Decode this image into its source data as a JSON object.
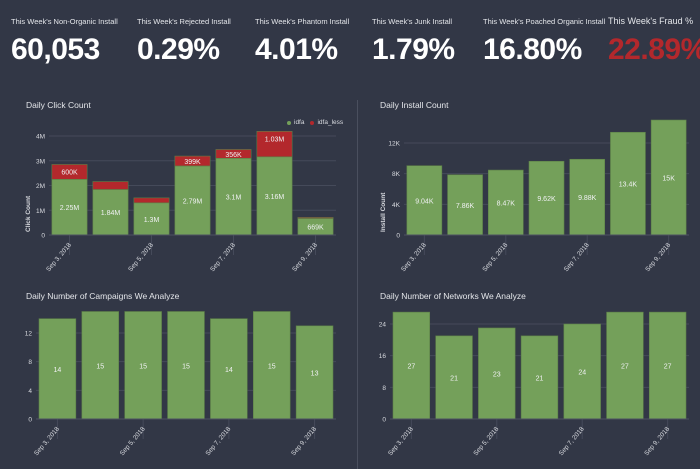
{
  "kpis": [
    {
      "label": "This Week's Non-Organic Install",
      "value": "60,053"
    },
    {
      "label": "This Week's Rejected Install",
      "value": "0.29%"
    },
    {
      "label": "This Week's Phantom Install",
      "value": "4.01%"
    },
    {
      "label": "This Week's Junk Install",
      "value": "1.79%"
    },
    {
      "label": "This Week's Poached Organic Install",
      "value": "16.80%"
    },
    {
      "label": "This Week's Fraud %",
      "value": "22.89%"
    }
  ],
  "colors": {
    "background": "#323746",
    "bar_green": "#74a05a",
    "bar_red": "#b3282c",
    "fraud_value": "#b3282c",
    "grid": "#454a5a"
  },
  "chart_data": [
    {
      "id": "click",
      "type": "bar",
      "stacked": true,
      "title": "Daily Click Count",
      "xlabel": "",
      "ylabel": "Click Count",
      "categories": [
        "Sep 3, 2018",
        "Sep 4, 2018",
        "Sep 5, 2018",
        "Sep 6, 2018",
        "Sep 7, 2018",
        "Sep 8, 2018",
        "Sep 9, 2018"
      ],
      "x_tick_labels": [
        "Sep 3, 2018",
        "Sep 5, 2018",
        "Sep 7, 2018",
        "Sep 9, 2018"
      ],
      "x_tick_indices": [
        0,
        2,
        4,
        6
      ],
      "y_ticks": [
        0,
        1000000,
        2000000,
        3000000,
        4000000
      ],
      "y_tick_labels": [
        "0",
        "1M",
        "2M",
        "3M",
        "4M"
      ],
      "ylim": [
        0,
        4200000
      ],
      "grid": true,
      "legend": {
        "placement": "top-right",
        "entries": [
          {
            "name": "idfa",
            "color": "#74a05a"
          },
          {
            "name": "idfa_less",
            "color": "#b3282c"
          }
        ]
      },
      "series": [
        {
          "name": "idfa",
          "color": "#74a05a",
          "values": [
            2250000,
            1840000,
            1300000,
            2790000,
            3100000,
            3160000,
            669000
          ],
          "labels": [
            "2.25M",
            "1.84M",
            "1.3M",
            "2.79M",
            "3.1M",
            "3.16M",
            "669K"
          ]
        },
        {
          "name": "idfa_less",
          "color": "#b3282c",
          "values": [
            600000,
            320000,
            200000,
            399000,
            356000,
            1030000,
            40000
          ],
          "labels": [
            "600K",
            "",
            "",
            "399K",
            "356K",
            "1.03M",
            ""
          ]
        }
      ]
    },
    {
      "id": "install",
      "type": "bar",
      "title": "Daily Install Count",
      "xlabel": "",
      "ylabel": "Install Count",
      "categories": [
        "Sep 3, 2018",
        "Sep 4, 2018",
        "Sep 5, 2018",
        "Sep 6, 2018",
        "Sep 7, 2018",
        "Sep 8, 2018",
        "Sep 9, 2018"
      ],
      "x_tick_labels": [
        "Sep 3, 2018",
        "Sep 5, 2018",
        "Sep 7, 2018",
        "Sep 9, 2018"
      ],
      "x_tick_indices": [
        0,
        2,
        4,
        6
      ],
      "y_ticks": [
        0,
        4000,
        8000,
        12000
      ],
      "y_tick_labels": [
        "0",
        "4K",
        "8K",
        "12K"
      ],
      "ylim": [
        0,
        15500
      ],
      "grid": true,
      "series": [
        {
          "name": "installs",
          "color": "#74a05a",
          "values": [
            9040,
            7860,
            8470,
            9620,
            9880,
            13400,
            15000
          ],
          "labels": [
            "9.04K",
            "7.86K",
            "8.47K",
            "9.62K",
            "9.88K",
            "13.4K",
            "15K"
          ]
        }
      ]
    },
    {
      "id": "campaigns",
      "type": "bar",
      "title": "Daily Number of Campaigns We Analyze",
      "xlabel": "",
      "ylabel": "",
      "categories": [
        "Sep 3, 2018",
        "Sep 4, 2018",
        "Sep 5, 2018",
        "Sep 6, 2018",
        "Sep 7, 2018",
        "Sep 8, 2018",
        "Sep 9, 2018"
      ],
      "x_tick_labels": [
        "Sep 3, 2018",
        "Sep 5, 2018",
        "Sep 7, 2018",
        "Sep 9, 2018"
      ],
      "x_tick_indices": [
        0,
        2,
        4,
        6
      ],
      "y_ticks": [
        0,
        4,
        8,
        12
      ],
      "y_tick_labels": [
        "0",
        "4",
        "8",
        "12"
      ],
      "ylim": [
        0,
        15
      ],
      "grid": true,
      "series": [
        {
          "name": "campaigns",
          "color": "#74a05a",
          "values": [
            14,
            15,
            15,
            15,
            14,
            15,
            13
          ],
          "labels": [
            "14",
            "15",
            "15",
            "15",
            "14",
            "15",
            "13"
          ]
        }
      ]
    },
    {
      "id": "networks",
      "type": "bar",
      "title": "Daily Number of Networks We Analyze",
      "xlabel": "",
      "ylabel": "",
      "categories": [
        "Sep 3, 2018",
        "Sep 4, 2018",
        "Sep 5, 2018",
        "Sep 6, 2018",
        "Sep 7, 2018",
        "Sep 8, 2018",
        "Sep 9, 2018"
      ],
      "x_tick_labels": [
        "Sep 3, 2018",
        "Sep 5, 2018",
        "Sep 7, 2018",
        "Sep 9, 2018"
      ],
      "x_tick_indices": [
        0,
        2,
        4,
        6
      ],
      "y_ticks": [
        0,
        8,
        16,
        24
      ],
      "y_tick_labels": [
        "0",
        "8",
        "16",
        "24"
      ],
      "ylim": [
        0,
        27
      ],
      "grid": true,
      "series": [
        {
          "name": "networks",
          "color": "#74a05a",
          "values": [
            27,
            21,
            23,
            21,
            24,
            27,
            27
          ],
          "labels": [
            "27",
            "21",
            "23",
            "21",
            "24",
            "27",
            "27"
          ]
        }
      ]
    }
  ]
}
